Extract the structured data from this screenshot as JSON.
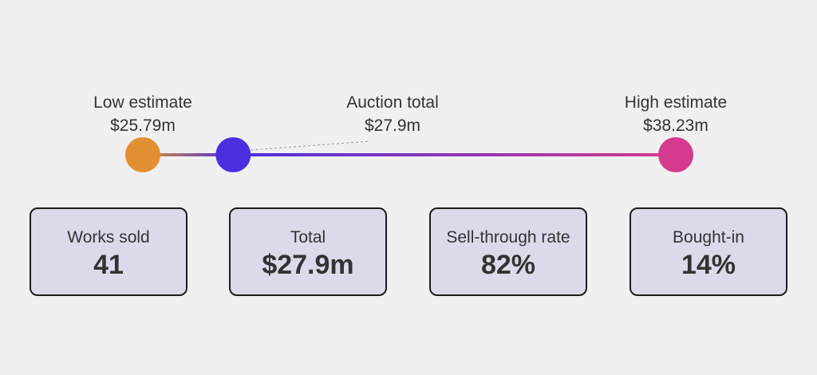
{
  "chart_data": {
    "type": "range",
    "unit": "$m",
    "markers": [
      {
        "key": "low",
        "label": "Low estimate",
        "value": 25.79,
        "display": "$25.79m",
        "color": "#e38f34"
      },
      {
        "key": "total",
        "label": "Auction total",
        "value": 27.9,
        "display": "$27.9m",
        "color": "#4a30e0"
      },
      {
        "key": "high",
        "label": "High estimate",
        "value": 38.23,
        "display": "$38.23m",
        "color": "#d63a8e"
      }
    ],
    "range": [
      25.79,
      38.23
    ]
  },
  "stats": [
    {
      "label": "Works sold",
      "value": "41"
    },
    {
      "label": "Total",
      "value": "$27.9m"
    },
    {
      "label": "Sell-through rate",
      "value": "82%"
    },
    {
      "label": "Bought-in",
      "value": "14%"
    }
  ]
}
